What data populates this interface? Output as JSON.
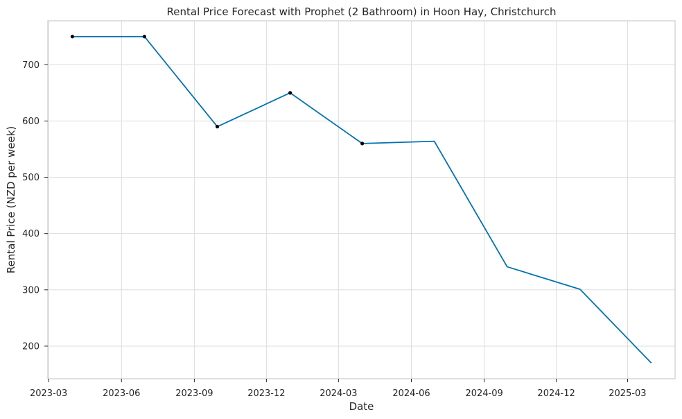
{
  "chart_data": {
    "type": "line",
    "title": "Rental Price Forecast with Prophet (2 Bathroom) in Hoon Hay, Christchurch",
    "xlabel": "Date",
    "ylabel": "Rental Price (NZD per week)",
    "x_axis_type": "date",
    "xlim": [
      "2023-02-28",
      "2025-04-30"
    ],
    "ylim": [
      142,
      778
    ],
    "grid": true,
    "x_ticks": [
      "2023-03-01",
      "2023-06-01",
      "2023-09-01",
      "2023-12-01",
      "2024-03-01",
      "2024-06-01",
      "2024-09-01",
      "2024-12-01",
      "2025-03-01"
    ],
    "x_tick_labels": [
      "2023-03",
      "2023-06",
      "2023-09",
      "2023-12",
      "2024-03",
      "2024-06",
      "2024-09",
      "2024-12",
      "2025-03"
    ],
    "y_ticks": [
      200,
      300,
      400,
      500,
      600,
      700
    ],
    "y_tick_labels": [
      "200",
      "300",
      "400",
      "500",
      "600",
      "700"
    ],
    "line_color": "#0072B2",
    "point_color": "#000000",
    "series": [
      {
        "kind": "forecast",
        "x": [
          "2023-03-31",
          "2023-06-30",
          "2023-09-30",
          "2023-12-31",
          "2024-03-31",
          "2024-06-30",
          "2024-09-30",
          "2024-12-31",
          "2025-03-31"
        ],
        "y": [
          750,
          750,
          590,
          650,
          560,
          564,
          341,
          301,
          170
        ]
      },
      {
        "kind": "observed",
        "x": [
          "2023-03-31",
          "2023-06-30",
          "2023-09-30",
          "2023-12-31",
          "2024-03-31"
        ],
        "y": [
          750,
          750,
          590,
          650,
          560
        ]
      }
    ]
  }
}
